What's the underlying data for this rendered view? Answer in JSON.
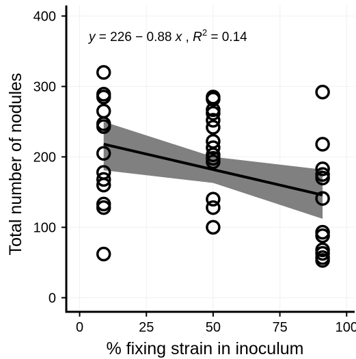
{
  "chart_data": {
    "type": "scatter",
    "title": "",
    "xlabel": "% fixing strain in inoculum",
    "ylabel": "Total number of nodules",
    "xlim": [
      -5,
      103
    ],
    "ylim": [
      -20,
      415
    ],
    "xticks": [
      0,
      25,
      50,
      75,
      100
    ],
    "yticks": [
      0,
      100,
      200,
      300,
      400
    ],
    "x_tick_labels": [
      "0",
      "25",
      "50",
      "75",
      "100"
    ],
    "y_tick_labels": [
      "0",
      "100",
      "200",
      "300",
      "400"
    ],
    "grid": true,
    "legend": "none",
    "points": [
      {
        "x": 9,
        "y": 62
      },
      {
        "x": 9,
        "y": 128
      },
      {
        "x": 9,
        "y": 133
      },
      {
        "x": 9,
        "y": 160
      },
      {
        "x": 9,
        "y": 168
      },
      {
        "x": 9,
        "y": 178
      },
      {
        "x": 9,
        "y": 205
      },
      {
        "x": 9,
        "y": 243
      },
      {
        "x": 9,
        "y": 247
      },
      {
        "x": 9,
        "y": 265
      },
      {
        "x": 9,
        "y": 285
      },
      {
        "x": 9,
        "y": 289
      },
      {
        "x": 9,
        "y": 320
      },
      {
        "x": 50,
        "y": 100
      },
      {
        "x": 50,
        "y": 128
      },
      {
        "x": 50,
        "y": 140
      },
      {
        "x": 50,
        "y": 193
      },
      {
        "x": 50,
        "y": 198
      },
      {
        "x": 50,
        "y": 203
      },
      {
        "x": 50,
        "y": 213
      },
      {
        "x": 50,
        "y": 222
      },
      {
        "x": 50,
        "y": 242
      },
      {
        "x": 50,
        "y": 252
      },
      {
        "x": 50,
        "y": 262
      },
      {
        "x": 50,
        "y": 267
      },
      {
        "x": 50,
        "y": 282
      },
      {
        "x": 50,
        "y": 285
      },
      {
        "x": 91,
        "y": 53
      },
      {
        "x": 91,
        "y": 57
      },
      {
        "x": 91,
        "y": 63
      },
      {
        "x": 91,
        "y": 68
      },
      {
        "x": 91,
        "y": 88
      },
      {
        "x": 91,
        "y": 93
      },
      {
        "x": 91,
        "y": 141
      },
      {
        "x": 91,
        "y": 170
      },
      {
        "x": 91,
        "y": 175
      },
      {
        "x": 91,
        "y": 183
      },
      {
        "x": 91,
        "y": 218
      },
      {
        "x": 91,
        "y": 292
      }
    ],
    "fit_line": {
      "x": [
        9,
        91
      ],
      "y": [
        218.1,
        145.9
      ]
    },
    "confidence_band": {
      "x": [
        9,
        50,
        91
      ],
      "upper": [
        250,
        200,
        182
      ],
      "lower": [
        181,
        163,
        112
      ]
    },
    "annotation": {
      "y_label": "y",
      "equals_1": " = 226 − 0.88 ",
      "x_label": "x",
      "separator": " , ",
      "r_label": "R",
      "r_exp": "2",
      "equals_2": " = 0.14"
    },
    "colors": {
      "points": "#000000",
      "line": "#000000",
      "band": "#808080",
      "grid": "#f2f2f2",
      "axis": "#000000"
    }
  }
}
